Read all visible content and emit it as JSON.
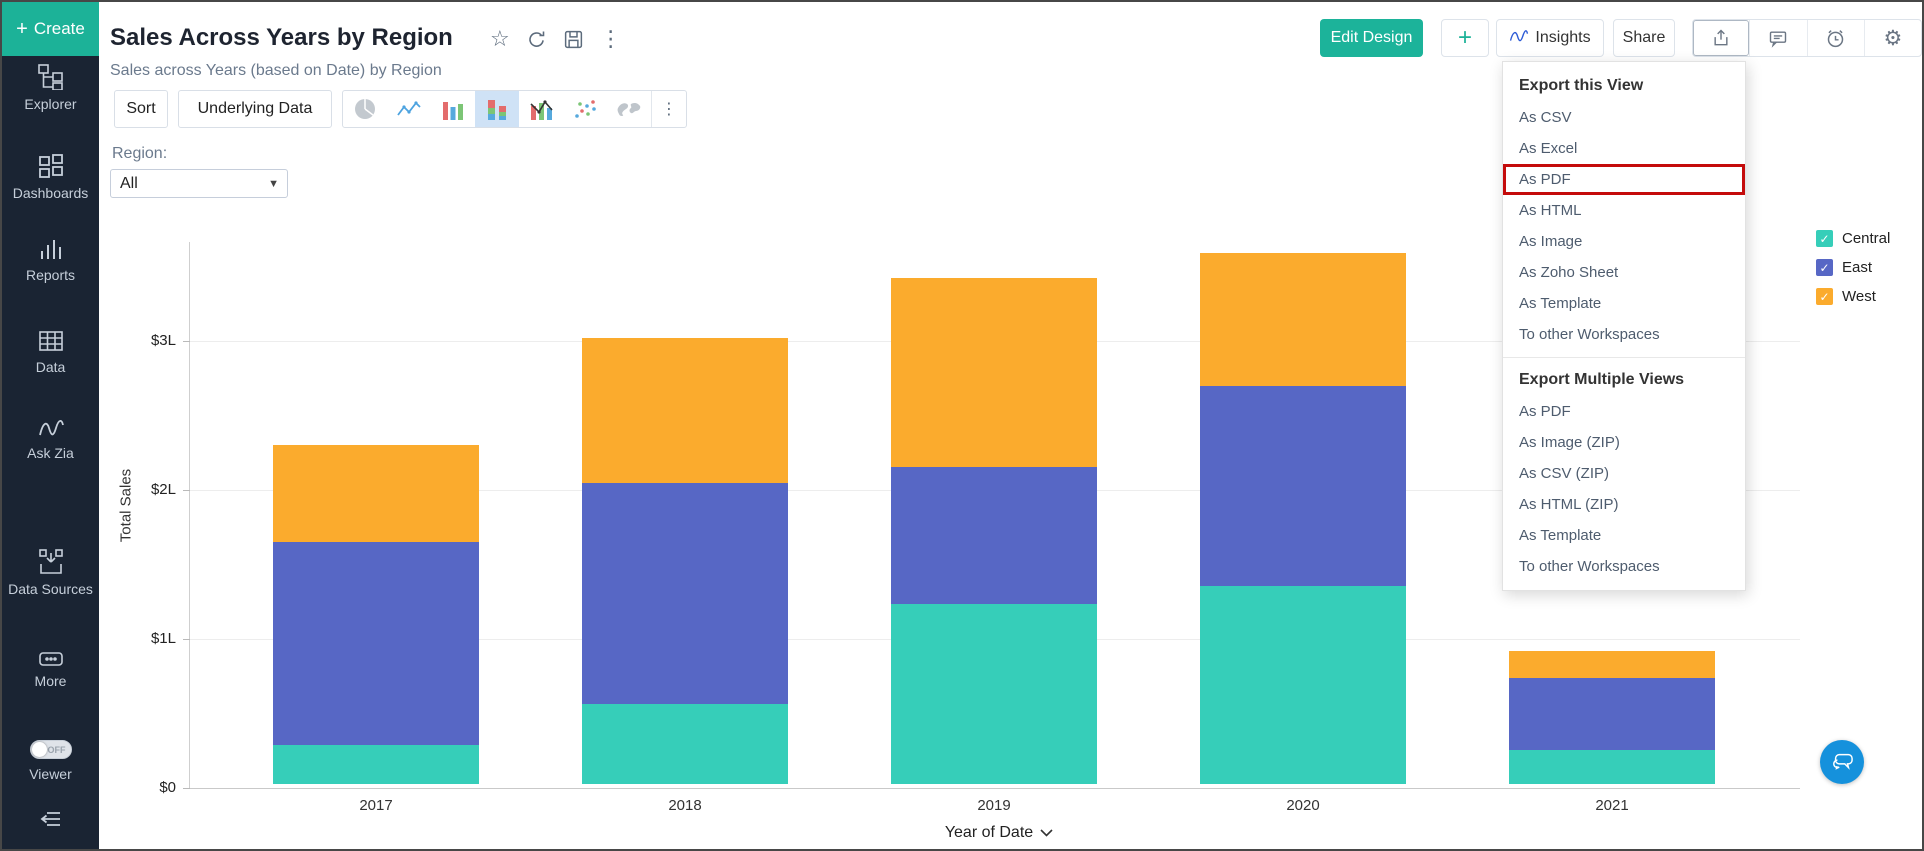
{
  "sidebar": {
    "create_label": "Create",
    "items": [
      {
        "name": "explorer",
        "label": "Explorer",
        "icon": "explorer-icon"
      },
      {
        "name": "dashboards",
        "label": "Dashboards",
        "icon": "dashboards-icon"
      },
      {
        "name": "reports",
        "label": "Reports",
        "icon": "reports-icon"
      },
      {
        "name": "data",
        "label": "Data",
        "icon": "data-table-icon"
      },
      {
        "name": "askzia",
        "label": "Ask Zia",
        "icon": "zia-icon"
      },
      {
        "name": "datasources",
        "label": "Data Sources",
        "icon": "data-sources-icon"
      },
      {
        "name": "more",
        "label": "More",
        "icon": "more-icon"
      }
    ],
    "viewer": {
      "label": "Viewer",
      "toggle_state": "OFF"
    }
  },
  "header": {
    "title": "Sales Across Years by Region",
    "subtitle": "Sales across Years (based on Date) by Region",
    "title_icons": [
      "star-icon",
      "refresh-icon",
      "save-icon",
      "more-vertical-icon"
    ]
  },
  "actions": {
    "edit_design": "Edit Design",
    "insights": "Insights",
    "share": "Share",
    "icon_buttons": [
      "export-icon",
      "comment-icon",
      "schedule-alarm-icon",
      "gear-icon"
    ]
  },
  "toolbar": {
    "sort": "Sort",
    "underlying_data": "Underlying Data",
    "chart_type_icons": [
      "pie-chart-icon",
      "line-chart-icon",
      "bar-chart-icon",
      "stacked-bar-chart-icon",
      "combo-chart-icon",
      "scatter-chart-icon",
      "map-chart-icon"
    ],
    "selected_chart_type": "stacked-bar-chart-icon"
  },
  "filter": {
    "label": "Region:",
    "value": "All"
  },
  "export_menu": {
    "sections": [
      {
        "header": "Export this View",
        "items": [
          {
            "label": "As CSV"
          },
          {
            "label": "As Excel"
          },
          {
            "label": "As PDF",
            "highlighted": true
          },
          {
            "label": "As HTML"
          },
          {
            "label": "As Image"
          },
          {
            "label": "As Zoho Sheet"
          },
          {
            "label": "As Template"
          },
          {
            "label": "To other Workspaces"
          }
        ]
      },
      {
        "header": "Export Multiple Views",
        "items": [
          {
            "label": "As PDF"
          },
          {
            "label": "As Image (ZIP)"
          },
          {
            "label": "As CSV (ZIP)"
          },
          {
            "label": "As HTML (ZIP)"
          },
          {
            "label": "As Template"
          },
          {
            "label": "To other Workspaces"
          }
        ]
      }
    ],
    "highlight_color": "#c40b0b"
  },
  "chart_data": {
    "type": "bar",
    "stacked": true,
    "title": "Sales Across Years by Region",
    "categories": [
      "2017",
      "2018",
      "2019",
      "2020",
      "2021"
    ],
    "series": [
      {
        "name": "Central",
        "color": "#36ceb9",
        "values": [
          0.26,
          0.54,
          1.21,
          1.33,
          0.23
        ]
      },
      {
        "name": "East",
        "color": "#5767c5",
        "values": [
          1.36,
          1.48,
          0.92,
          1.34,
          0.48
        ]
      },
      {
        "name": "West",
        "color": "#fbab2d",
        "values": [
          0.65,
          0.97,
          1.27,
          0.89,
          0.18
        ]
      }
    ],
    "xlabel": "Year of Date",
    "ylabel": "Total Sales",
    "y_ticks": [
      "$0",
      "$1L",
      "$2L",
      "$3L"
    ],
    "ylim": [
      0,
      3.6
    ],
    "unit": "lakhs",
    "legend_position": "right",
    "grid": true
  },
  "chat": {
    "icon": "chat-bubbles-icon"
  }
}
